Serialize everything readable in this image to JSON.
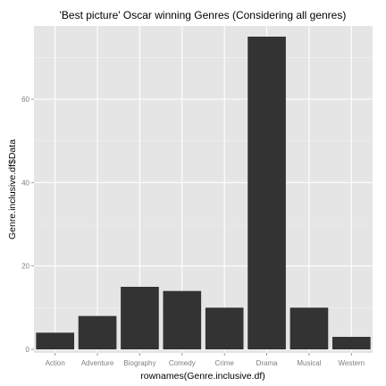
{
  "chart_data": {
    "type": "bar",
    "title": "'Best picture' Oscar winning Genres (Considering all genres)",
    "xlabel": "rownames(Genre.inclusive.df)",
    "ylabel": "Genre.inclusive.df$Data",
    "categories": [
      "Action",
      "Adventure",
      "Biography",
      "Comedy",
      "Crime",
      "Drama",
      "Musical",
      "Western"
    ],
    "values": [
      4,
      8,
      15,
      14,
      10,
      75,
      10,
      3
    ],
    "ylim": [
      0,
      79
    ],
    "yticks": [
      0,
      20,
      40,
      60
    ],
    "yticks_minor": [
      10,
      30,
      50,
      70
    ],
    "grid": true,
    "legend": "none",
    "colors": {
      "panel_background": "#e5e5e5",
      "grid_major": "#ffffff",
      "grid_minor": "#f2f2f2",
      "bar_fill": "#333333",
      "tick_text": "#7f7f7f"
    }
  }
}
